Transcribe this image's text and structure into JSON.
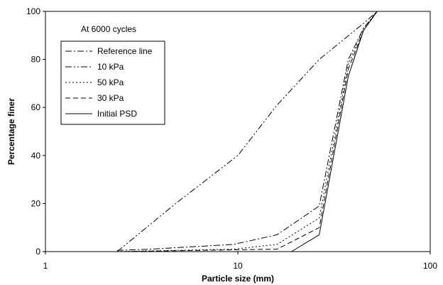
{
  "chart_data": {
    "type": "line",
    "annotation": "At 6000 cycles",
    "xlabel": "Particle size (mm)",
    "ylabel": "Percentage finer",
    "xscale": "log",
    "xlim": [
      1,
      100
    ],
    "ylim": [
      0,
      100
    ],
    "xticks": [
      "1",
      "10",
      "100"
    ],
    "yticks": [
      "0",
      "20",
      "40",
      "60",
      "80",
      "100"
    ],
    "grid": false,
    "legend_position": "top-left",
    "series": [
      {
        "name": "Reference line",
        "dash": "dash-dot",
        "points": [
          [
            2.36,
            0.5
          ],
          [
            3.5,
            1
          ],
          [
            9.5,
            3
          ],
          [
            16,
            7
          ],
          [
            26.5,
            19
          ],
          [
            37.5,
            80
          ],
          [
            45,
            93
          ],
          [
            53,
            100
          ]
        ]
      },
      {
        "name": "10 kPa",
        "dash": "dash-dot-dot",
        "points": [
          [
            2.36,
            0
          ],
          [
            4.75,
            20
          ],
          [
            10,
            40
          ],
          [
            16,
            61
          ],
          [
            26.5,
            80
          ],
          [
            45,
            95
          ],
          [
            53,
            100
          ]
        ]
      },
      {
        "name": "50 kPa",
        "dash": "dotted",
        "points": [
          [
            2.36,
            0
          ],
          [
            9.5,
            1
          ],
          [
            16,
            3
          ],
          [
            26.5,
            14
          ],
          [
            37.5,
            78
          ],
          [
            45,
            93
          ],
          [
            53,
            100
          ]
        ]
      },
      {
        "name": "30 kPa",
        "dash": "dashed",
        "points": [
          [
            2.36,
            0
          ],
          [
            16,
            1
          ],
          [
            26.5,
            10
          ],
          [
            37.5,
            76
          ],
          [
            45,
            92
          ],
          [
            53,
            100
          ]
        ]
      },
      {
        "name": "Initial PSD",
        "dash": "solid",
        "points": [
          [
            19,
            0
          ],
          [
            26.5,
            7
          ],
          [
            37.5,
            73
          ],
          [
            45,
            92
          ],
          [
            53,
            100
          ]
        ]
      }
    ]
  }
}
